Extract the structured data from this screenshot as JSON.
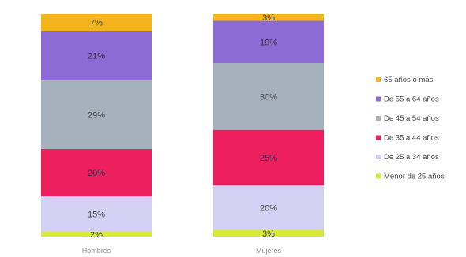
{
  "chart_data": {
    "type": "bar",
    "stacked": true,
    "normalized": true,
    "categories": [
      "Hombres",
      "Mujeres"
    ],
    "series": [
      {
        "name": "Menor de 25 años",
        "values": [
          2,
          3
        ],
        "labels": [
          "2%",
          "3%"
        ],
        "color": "#d7ea3a"
      },
      {
        "name": "De 25 a 34 años",
        "values": [
          15,
          20
        ],
        "labels": [
          "15%",
          "20%"
        ],
        "color": "#d4d0f4"
      },
      {
        "name": "De 35 a 44 años",
        "values": [
          20,
          25
        ],
        "labels": [
          "20%",
          "25%"
        ],
        "color": "#ee1f5f"
      },
      {
        "name": "De 45 a 54 años",
        "values": [
          29,
          30
        ],
        "labels": [
          "29%",
          "30%"
        ],
        "color": "#a5b2be"
      },
      {
        "name": "De 55 a 64 años",
        "values": [
          21,
          19
        ],
        "labels": [
          "21%",
          "19%"
        ],
        "color": "#8c6bd4"
      },
      {
        "name": "65 años o más",
        "values": [
          7,
          3
        ],
        "labels": [
          "7%",
          "3%"
        ],
        "color": "#f3b41c"
      }
    ],
    "legend_position": "right",
    "grid": false
  }
}
